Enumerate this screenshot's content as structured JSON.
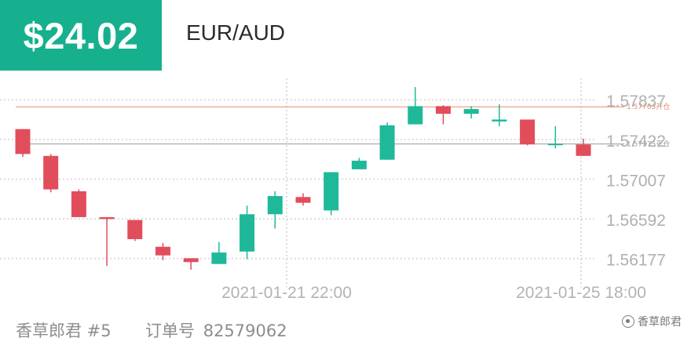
{
  "header": {
    "profit": "$24.02",
    "pair": "EUR/AUD"
  },
  "colors": {
    "accent": "#16b08e",
    "up": "#1fb99a",
    "down": "#e24d5c",
    "close_line": "#e58a6a",
    "open_line": "#9a9a9a",
    "grid": "#dddddd"
  },
  "chart_data": {
    "type": "candlestick",
    "y_ticks": [
      "1.57837",
      "1.57422",
      "1.57007",
      "1.56592",
      "1.56177"
    ],
    "x_ticks": [
      "2021-01-21 22:00",
      "2021-01-25 18:00"
    ],
    "ylim": [
      1.5597,
      1.5806
    ],
    "grid": true,
    "reference_lines": [
      {
        "label": "1.57763开仓",
        "value": 1.57763,
        "kind": "close"
      },
      {
        "label": "1.57375平仓",
        "value": 1.57375,
        "kind": "open"
      }
    ],
    "candles": [
      {
        "o": 1.5753,
        "h": 1.5753,
        "l": 1.5724,
        "c": 1.5727
      },
      {
        "o": 1.5725,
        "h": 1.5727,
        "l": 1.5687,
        "c": 1.569
      },
      {
        "o": 1.5688,
        "h": 1.569,
        "l": 1.5661,
        "c": 1.5661
      },
      {
        "o": 1.5661,
        "h": 1.5661,
        "l": 1.561,
        "c": 1.5659
      },
      {
        "o": 1.5658,
        "h": 1.5658,
        "l": 1.5636,
        "c": 1.5638
      },
      {
        "o": 1.563,
        "h": 1.5634,
        "l": 1.5616,
        "c": 1.5621
      },
      {
        "o": 1.5618,
        "h": 1.5618,
        "l": 1.5606,
        "c": 1.5614
      },
      {
        "o": 1.5612,
        "h": 1.5635,
        "l": 1.5612,
        "c": 1.5624
      },
      {
        "o": 1.5625,
        "h": 1.5673,
        "l": 1.5617,
        "c": 1.5664
      },
      {
        "o": 1.5664,
        "h": 1.5688,
        "l": 1.5649,
        "c": 1.5683
      },
      {
        "o": 1.5682,
        "h": 1.5686,
        "l": 1.5673,
        "c": 1.5676
      },
      {
        "o": 1.5668,
        "h": 1.5708,
        "l": 1.5663,
        "c": 1.5708
      },
      {
        "o": 1.5711,
        "h": 1.5723,
        "l": 1.5711,
        "c": 1.572
      },
      {
        "o": 1.5721,
        "h": 1.576,
        "l": 1.5721,
        "c": 1.5757
      },
      {
        "o": 1.5758,
        "h": 1.5797,
        "l": 1.5758,
        "c": 1.5777
      },
      {
        "o": 1.5777,
        "h": 1.5778,
        "l": 1.5758,
        "c": 1.5769
      },
      {
        "o": 1.5769,
        "h": 1.5777,
        "l": 1.5764,
        "c": 1.5774
      },
      {
        "o": 1.5761,
        "h": 1.5779,
        "l": 1.5756,
        "c": 1.5763
      },
      {
        "o": 1.5763,
        "h": 1.5763,
        "l": 1.5736,
        "c": 1.5737
      },
      {
        "o": 1.5737,
        "h": 1.5756,
        "l": 1.5733,
        "c": 1.5737
      },
      {
        "o": 1.5737,
        "h": 1.5743,
        "l": 1.5725,
        "c": 1.5725
      }
    ]
  },
  "footer": {
    "account": "香草郎君 #5",
    "order_label": "订单号",
    "order_number": "82579062"
  },
  "watermark": {
    "text": "香草郎君",
    "icon": "wechat-icon"
  }
}
